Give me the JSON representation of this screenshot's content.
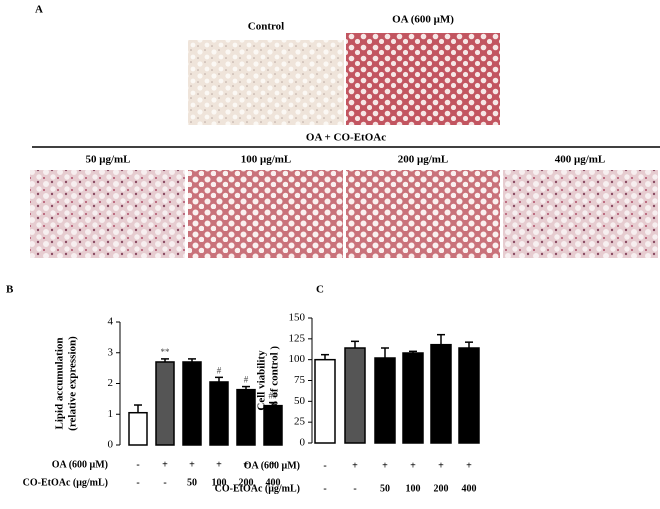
{
  "panel_labels": [
    "A",
    "B",
    "C"
  ],
  "panel_a": {
    "top_captions": [
      "Control",
      "OA (600 μM)"
    ],
    "group_label": "OA + CO-EtOAc",
    "bottom_captions": [
      "50 μg/mL",
      "100 μg/mL",
      "200 μg/mL",
      "400 μg/mL"
    ]
  },
  "chart_data": [
    {
      "type": "bar",
      "ylabel": [
        "Lipid accumulation",
        "(relative expression)"
      ],
      "values": [
        1.05,
        2.7,
        2.7,
        2.05,
        1.8,
        1.28
      ],
      "errors": [
        0.25,
        0.1,
        0.1,
        0.15,
        0.1,
        0.1
      ],
      "colors": [
        "#ffffff",
        "#555555",
        "#000000",
        "#000000",
        "#000000",
        "#000000"
      ],
      "annotations": [
        null,
        "**",
        null,
        "#",
        "#",
        "##"
      ],
      "ylim": [
        0,
        4
      ],
      "yticks": [
        0,
        1,
        2,
        3,
        4
      ],
      "condition_rows": [
        {
          "name": "OA (600 μM)",
          "labels": [
            "-",
            "+",
            "+",
            "+",
            "+",
            "+"
          ]
        },
        {
          "name": "CO-EtOAc (μg/mL)",
          "labels": [
            "-",
            "-",
            "50",
            "100",
            "200",
            "400"
          ]
        }
      ]
    },
    {
      "type": "bar",
      "ylabel": [
        "Cell viability",
        "(% of control )"
      ],
      "values": [
        100,
        114,
        102,
        108,
        118,
        114
      ],
      "errors": [
        6,
        8,
        12,
        2,
        12,
        7
      ],
      "colors": [
        "#ffffff",
        "#555555",
        "#000000",
        "#000000",
        "#000000",
        "#000000"
      ],
      "ylim": [
        0,
        150
      ],
      "yticks": [
        0,
        25,
        50,
        75,
        100,
        125,
        150
      ],
      "condition_rows": [
        {
          "name": "OA (600 μM)",
          "labels": [
            "-",
            "+",
            "+",
            "+",
            "+",
            "+"
          ]
        },
        {
          "name": "CO-EtOAc (μg/mL)",
          "labels": [
            "-",
            "-",
            "50",
            "100",
            "200",
            "400"
          ]
        }
      ]
    }
  ]
}
